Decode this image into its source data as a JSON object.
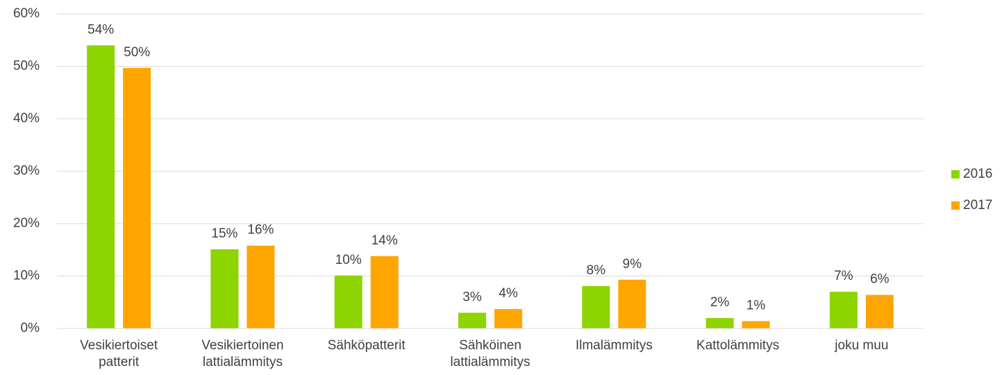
{
  "chart_data": {
    "type": "bar",
    "categories": [
      "Vesikiertoiset patterit",
      "Vesikiertoinen lattialämmitys",
      "Sähköpatterit",
      "Sähköinen lattialämmitys",
      "Ilmalämmitys",
      "Kattolämmitys",
      "joku muu"
    ],
    "series": [
      {
        "name": "2016",
        "color": "#8dd400",
        "values": [
          54,
          15.1,
          10.1,
          3,
          8.1,
          2,
          7
        ],
        "value_labels": [
          "54%",
          "15%",
          "10%",
          "3%",
          "8%",
          "2%",
          "7%"
        ]
      },
      {
        "name": "2017",
        "color": "#ffa500",
        "values": [
          49.7,
          15.8,
          13.8,
          3.7,
          9.3,
          1.4,
          6.4
        ],
        "value_labels": [
          "50%",
          "16%",
          "14%",
          "4%",
          "9%",
          "1%",
          "6%"
        ]
      }
    ],
    "ylim": [
      0,
      60
    ],
    "yticks": [
      {
        "value": 0,
        "label": "0%"
      },
      {
        "value": 10,
        "label": "10%"
      },
      {
        "value": 20,
        "label": "20%"
      },
      {
        "value": 30,
        "label": "30%"
      },
      {
        "value": 40,
        "label": "40%"
      },
      {
        "value": 50,
        "label": "50%"
      },
      {
        "value": 60,
        "label": "60%"
      }
    ],
    "grid": true,
    "legend": "right"
  }
}
